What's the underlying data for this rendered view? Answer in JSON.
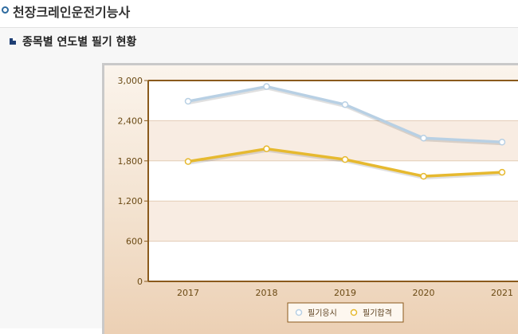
{
  "page": {
    "title": "천장크레인운전기능사"
  },
  "section": {
    "title": "종목별 연도별 필기 현황"
  },
  "colors": {
    "series_applicants": "#b8d0e4",
    "series_passers": "#e6b92f",
    "plot_border": "#8a5a1c",
    "band": "#f8ece2",
    "tick_text": "#6b4a14"
  },
  "chart_data": {
    "type": "line",
    "title": "",
    "xlabel": "",
    "ylabel": "",
    "categories": [
      "2017",
      "2018",
      "2019",
      "2020",
      "2021"
    ],
    "ylim": [
      0,
      3000
    ],
    "yticks": [
      0,
      600,
      1200,
      1800,
      2400,
      3000
    ],
    "ytick_labels": [
      "0",
      "600",
      "1,200",
      "1,800",
      "2,400",
      "3,000"
    ],
    "grid": true,
    "legend_position": "bottom-center",
    "series": [
      {
        "name": "필기응시",
        "values": [
          2690,
          2910,
          2640,
          2140,
          2080
        ]
      },
      {
        "name": "필기합격",
        "values": [
          1790,
          1980,
          1820,
          1570,
          1630
        ]
      }
    ]
  }
}
